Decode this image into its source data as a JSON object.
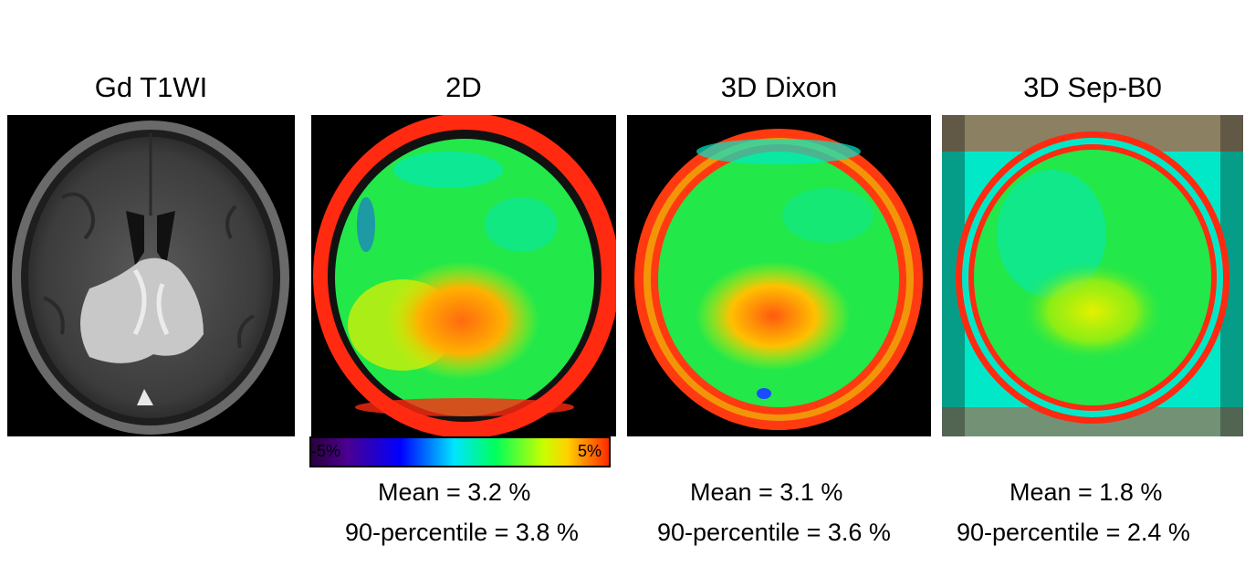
{
  "panels": [
    {
      "title": "Gd T1WI"
    },
    {
      "title": "2D",
      "mean": "Mean = 3.2 %",
      "p90": "90-percentile = 3.8 %"
    },
    {
      "title": "3D Dixon",
      "mean": "Mean = 3.1 %",
      "p90": "90-percentile = 3.6 %"
    },
    {
      "title": "3D Sep-B0",
      "mean": "Mean = 1.8 %",
      "p90": "90-percentile = 2.4 %"
    }
  ],
  "colorbar": {
    "min_label": "-5%",
    "max_label": "5%"
  },
  "colors": {
    "map_green": "#22e84a",
    "rim_red": "#ff2a10",
    "lesion_orange": "#ff8a10",
    "lesion_yellow": "#e6f000",
    "cyan": "#00e8c8",
    "blue": "#1a4cff"
  }
}
